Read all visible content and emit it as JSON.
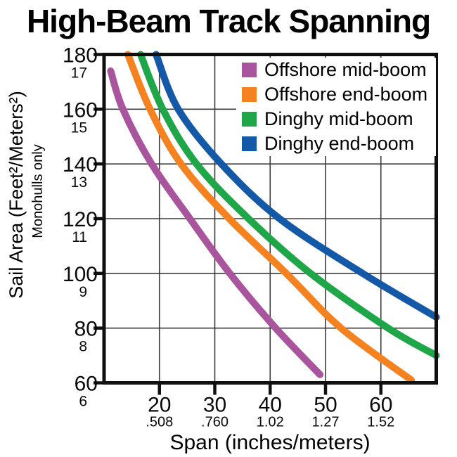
{
  "title": "High-Beam Track Spanning",
  "y_axis": {
    "label": "Sail Area (Feet²/Meters²)",
    "sublabel": "Monohulls only"
  },
  "x_axis": {
    "label": "Span (inches/meters)"
  },
  "legend": [
    {
      "label": "Offshore mid-boom",
      "color": "#a8559e"
    },
    {
      "label": "Offshore end-boom",
      "color": "#f58220"
    },
    {
      "label": "Dinghy mid-boom",
      "color": "#1fa648"
    },
    {
      "label": "Dinghy end-boom",
      "color": "#1458a8"
    }
  ],
  "chart_data": {
    "type": "line",
    "title": "High-Beam Track Spanning",
    "xlabel": "Span (inches/meters)",
    "ylabel": "Sail Area (Feet²/Meters²) — Monohulls only",
    "xlim": [
      10,
      70
    ],
    "ylim": [
      60,
      180
    ],
    "grid": true,
    "legend_position": "top-right",
    "x_ticks": [
      {
        "inches": "20",
        "meters": ".508"
      },
      {
        "inches": "30",
        "meters": ".760"
      },
      {
        "inches": "40",
        "meters": "1.02"
      },
      {
        "inches": "50",
        "meters": "1.27"
      },
      {
        "inches": "60",
        "meters": "1.52"
      }
    ],
    "y_ticks": [
      {
        "feet": "180",
        "meters": "17"
      },
      {
        "feet": "160",
        "meters": "15"
      },
      {
        "feet": "140",
        "meters": "13"
      },
      {
        "feet": "120",
        "meters": "11"
      },
      {
        "feet": "100",
        "meters": "9"
      },
      {
        "feet": "80",
        "meters": "8"
      },
      {
        "feet": "60",
        "meters": "6"
      }
    ],
    "series": [
      {
        "name": "Offshore mid-boom",
        "color": "#a8559e",
        "points": [
          [
            11.2,
            174
          ],
          [
            13.4,
            160
          ],
          [
            18.6,
            140
          ],
          [
            25.5,
            120
          ],
          [
            32.7,
            100
          ],
          [
            41,
            80
          ],
          [
            49,
            63
          ]
        ]
      },
      {
        "name": "Offshore end-boom",
        "color": "#f58220",
        "points": [
          [
            14.3,
            180
          ],
          [
            18.3,
            160
          ],
          [
            23.9,
            140
          ],
          [
            32.6,
            120
          ],
          [
            42.9,
            100
          ],
          [
            52.8,
            80
          ],
          [
            65.5,
            61
          ]
        ]
      },
      {
        "name": "Dinghy mid-boom",
        "color": "#1fa648",
        "points": [
          [
            16.6,
            180
          ],
          [
            20.6,
            160
          ],
          [
            26.7,
            140
          ],
          [
            36.1,
            120
          ],
          [
            47.3,
            100
          ],
          [
            61.3,
            80
          ],
          [
            70,
            70
          ]
        ]
      },
      {
        "name": "Dinghy end-boom",
        "color": "#1458a8",
        "points": [
          [
            19.4,
            180
          ],
          [
            23.4,
            160
          ],
          [
            31.2,
            140
          ],
          [
            41.7,
            120
          ],
          [
            56.7,
            100
          ],
          [
            70,
            84
          ]
        ]
      }
    ]
  }
}
